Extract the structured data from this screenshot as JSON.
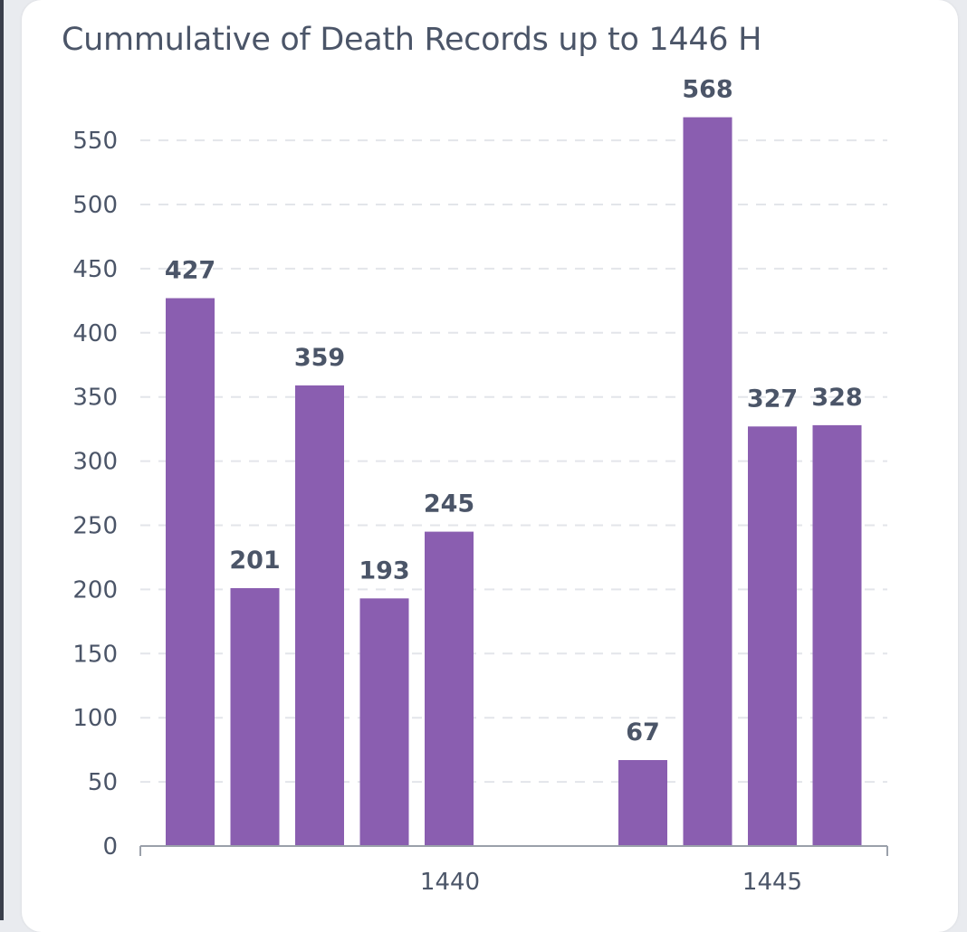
{
  "chart_data": {
    "type": "bar",
    "title": "Cummulative of Death Records up to 1446 H",
    "xlabel": "",
    "ylabel": "",
    "ylim": [
      0,
      568
    ],
    "yticks": [
      0,
      50,
      100,
      150,
      200,
      250,
      300,
      350,
      400,
      450,
      500,
      550
    ],
    "grid": true,
    "legend": "none",
    "categories": [
      "1440",
      "1445"
    ],
    "groups": [
      {
        "label": "1440",
        "values": [
          427,
          201,
          359,
          193,
          245
        ]
      },
      {
        "label": "1445",
        "values": [
          67,
          568,
          327,
          328
        ]
      }
    ],
    "bar_color": "#8a5eb0",
    "grid_color": "#e3e5ea",
    "axis_color": "#9aa0aa"
  }
}
